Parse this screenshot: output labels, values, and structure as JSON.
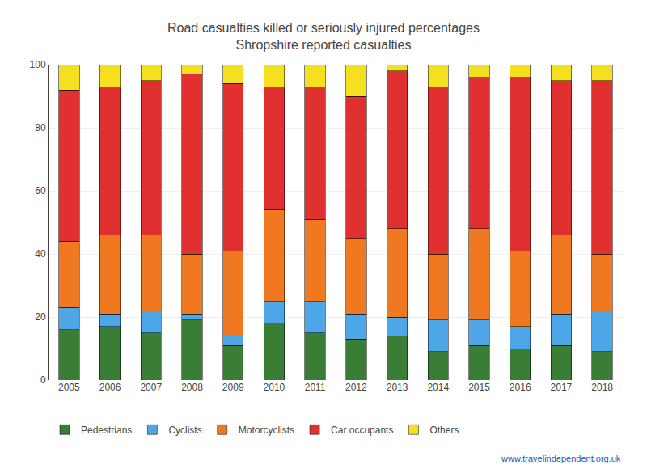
{
  "chart_data": {
    "type": "bar",
    "title": "Road casualties killed or seriously injured percentages",
    "subtitle": "Shropshire reported casualties",
    "categories": [
      "2005",
      "2006",
      "2007",
      "2008",
      "2009",
      "2010",
      "2011",
      "2012",
      "2013",
      "2014",
      "2015",
      "2016",
      "2017",
      "2018"
    ],
    "series": [
      {
        "name": "Pedestrians",
        "color": "#3a7d35",
        "values": [
          16,
          17,
          15,
          19,
          11,
          18,
          15,
          13,
          14,
          9,
          11,
          10,
          11,
          9
        ]
      },
      {
        "name": "Cyclists",
        "color": "#4da6e8",
        "values": [
          7,
          4,
          7,
          2,
          3,
          7,
          10,
          8,
          6,
          10,
          8,
          7,
          10,
          13
        ]
      },
      {
        "name": "Motorcyclists",
        "color": "#f07820",
        "values": [
          21,
          25,
          24,
          19,
          27,
          29,
          26,
          24,
          28,
          21,
          29,
          24,
          25,
          18
        ]
      },
      {
        "name": "Car occupants",
        "color": "#e03030",
        "values": [
          48,
          47,
          49,
          57,
          53,
          39,
          42,
          45,
          50,
          53,
          48,
          55,
          49,
          55
        ]
      },
      {
        "name": "Others",
        "color": "#f5e020",
        "values": [
          8,
          7,
          5,
          3,
          6,
          7,
          7,
          10,
          2,
          7,
          4,
          4,
          5,
          5
        ]
      }
    ],
    "stacked": true,
    "ylim": [
      0,
      100
    ],
    "yticks": [
      0,
      20,
      40,
      60,
      80,
      100
    ],
    "grid": true,
    "legend": "bottom",
    "annotations": [
      "www.travelindependent.org.uk"
    ]
  }
}
